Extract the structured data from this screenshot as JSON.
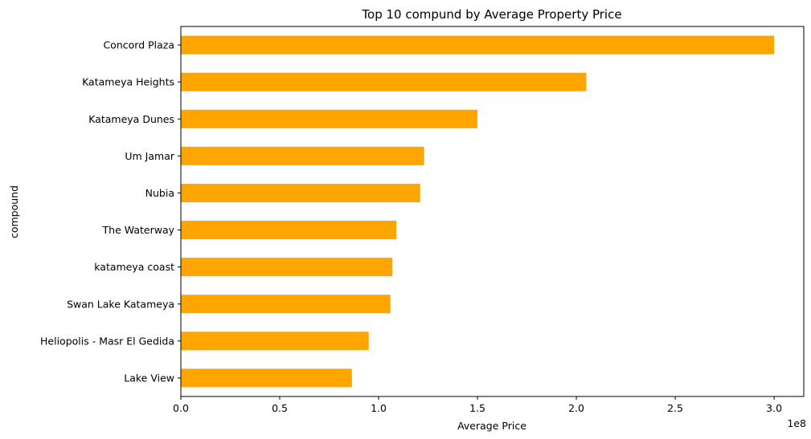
{
  "chart_data": {
    "type": "bar",
    "orientation": "horizontal",
    "title": "Top 10 compund by Average Property Price",
    "xlabel": "Average Price",
    "ylabel": "compound",
    "x_multiplier_label": "1e8",
    "xlim": [
      0,
      3.15
    ],
    "xticks": [
      "0.0",
      "0.5",
      "1.0",
      "1.5",
      "2.0",
      "2.5",
      "3.0"
    ],
    "xtick_values": [
      0,
      0.5,
      1.0,
      1.5,
      2.0,
      2.5,
      3.0
    ],
    "bar_color": "#ffa500",
    "grid": false,
    "categories": [
      "Concord Plaza",
      "Katameya Heights",
      "Katameya Dunes",
      "Um Jamar",
      "Nubia",
      "The Waterway",
      "katameya coast",
      "Swan Lake Katameya",
      "Heliopolis - Masr El Gedida",
      "Lake View"
    ],
    "values": [
      3.0,
      2.05,
      1.5,
      1.23,
      1.21,
      1.09,
      1.07,
      1.06,
      0.95,
      0.865
    ]
  }
}
